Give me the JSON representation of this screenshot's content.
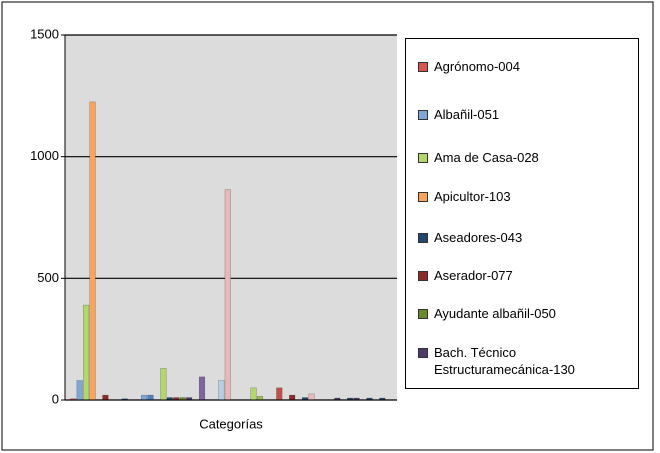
{
  "chart_data": {
    "type": "bar",
    "categories": [
      "Categorías"
    ],
    "ylim": [
      0,
      1500
    ],
    "yticks": [
      0,
      500,
      1000,
      1500
    ],
    "grid": true,
    "legend": "right",
    "series": [
      {
        "name": "Agrónomo-004",
        "color": "#d9534f",
        "values": [
          5
        ]
      },
      {
        "name": "Albañil-051",
        "color": "#7ea6d6",
        "values": [
          80
        ]
      },
      {
        "name": "Ama de Casa-028",
        "color": "#b3d66d",
        "values": [
          390
        ]
      },
      {
        "name": "Apicultor-103",
        "color": "#f9a35b",
        "values": [
          1225
        ]
      },
      {
        "name": "Aseadores-043",
        "color": "#24466e",
        "values": [
          0
        ]
      },
      {
        "name": "Aserador-077",
        "color": "#8b2b2b",
        "values": [
          20
        ]
      },
      {
        "name": "Ayudante albañil-050",
        "color": "#6b8a2a",
        "values": [
          0
        ]
      },
      {
        "name": "Bach. Técnico Estructuramecánica-130",
        "color": "#4b3a6b",
        "values": [
          0
        ]
      },
      {
        "color": "#24466e",
        "values": [
          5
        ]
      },
      {
        "color": "#d9534f",
        "values": [
          0
        ]
      },
      {
        "color": "#7ea6d6",
        "values": [
          0
        ]
      },
      {
        "color": "#7ea6d6",
        "values": [
          20
        ]
      },
      {
        "color": "#4f81bd",
        "values": [
          20
        ]
      },
      {
        "color": "#f9a35b",
        "values": [
          0
        ]
      },
      {
        "color": "#b3d66d",
        "values": [
          130
        ]
      },
      {
        "color": "#24466e",
        "values": [
          10
        ]
      },
      {
        "color": "#8b2b2b",
        "values": [
          10
        ]
      },
      {
        "color": "#6b8a2a",
        "values": [
          10
        ]
      },
      {
        "color": "#4b3a6b",
        "values": [
          10
        ]
      },
      {
        "color": "#d9534f",
        "values": [
          0
        ]
      },
      {
        "color": "#8064a2",
        "values": [
          95
        ]
      },
      {
        "color": "#b3d66d",
        "values": [
          0
        ]
      },
      {
        "color": "#f9a35b",
        "values": [
          0
        ]
      },
      {
        "color": "#b8cce4",
        "values": [
          80
        ]
      },
      {
        "color": "#e6b9b8",
        "values": [
          865
        ]
      },
      {
        "color": "#7ea6d6",
        "values": [
          0
        ]
      },
      {
        "color": "#24466e",
        "values": [
          0
        ]
      },
      {
        "color": "#8b2b2b",
        "values": [
          0
        ]
      },
      {
        "color": "#b3d66d",
        "values": [
          50
        ]
      },
      {
        "color": "#9bbb59",
        "values": [
          15
        ]
      },
      {
        "color": "#4b3a6b",
        "values": [
          0
        ]
      },
      {
        "color": "#f9a35b",
        "values": [
          0
        ]
      },
      {
        "color": "#c0504d",
        "values": [
          50
        ]
      },
      {
        "color": "#7ea6d6",
        "values": [
          0
        ]
      },
      {
        "color": "#8b2b2b",
        "values": [
          20
        ]
      },
      {
        "color": "#6b8a2a",
        "values": [
          0
        ]
      },
      {
        "color": "#24466e",
        "values": [
          10
        ]
      },
      {
        "color": "#e6b9b8",
        "values": [
          25
        ]
      },
      {
        "color": "#b3d66d",
        "values": [
          0
        ]
      },
      {
        "color": "#f9a35b",
        "values": [
          0
        ]
      },
      {
        "color": "#d9534f",
        "values": [
          0
        ]
      },
      {
        "color": "#4b3a6b",
        "values": [
          8
        ]
      },
      {
        "color": "#7ea6d6",
        "values": [
          0
        ]
      },
      {
        "color": "#24466e",
        "values": [
          8
        ]
      },
      {
        "color": "#4b3a6b",
        "values": [
          8
        ]
      },
      {
        "color": "#6b8a2a",
        "values": [
          0
        ]
      },
      {
        "color": "#24466e",
        "values": [
          8
        ]
      },
      {
        "color": "#d9534f",
        "values": [
          0
        ]
      },
      {
        "color": "#24466e",
        "values": [
          8
        ]
      },
      {
        "color": "#f9a35b",
        "values": [
          0
        ]
      }
    ]
  }
}
